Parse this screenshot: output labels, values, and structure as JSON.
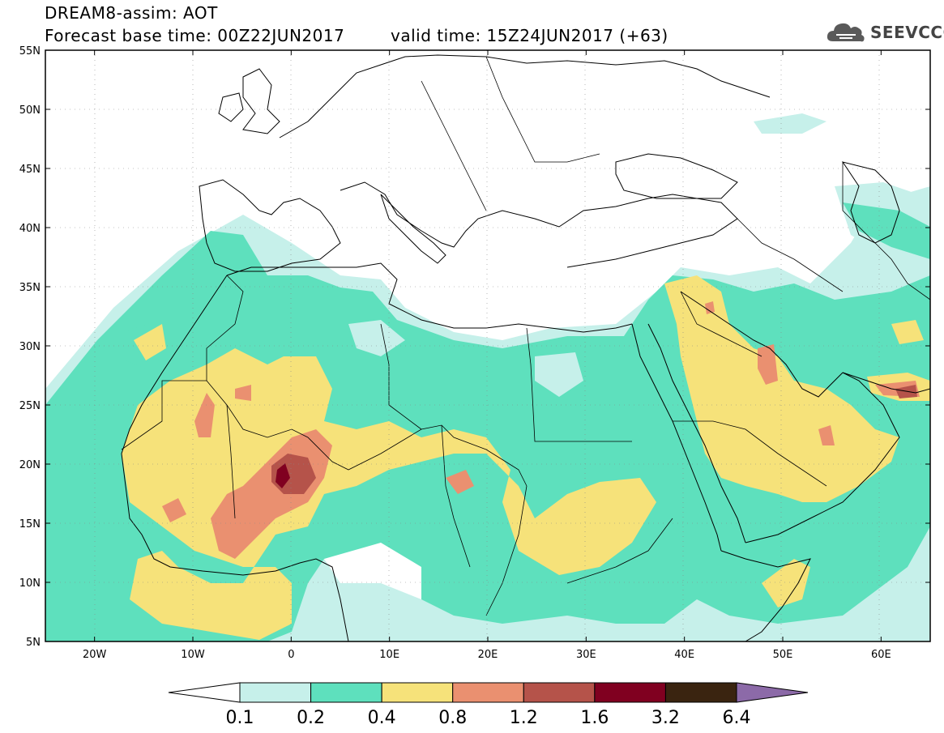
{
  "header": {
    "title_line1": "DREAM8-assim: AOT",
    "title_line2": "Forecast base time: 00Z22JUN2017",
    "valid_time": "valid time: 15Z24JUN2017 (+63)",
    "logo_text": "SEEVCCC"
  },
  "map": {
    "variable": "AOT",
    "lon_range": [
      -25,
      65
    ],
    "lat_range": [
      5,
      55
    ],
    "lat_ticks": [
      "55N",
      "50N",
      "45N",
      "40N",
      "35N",
      "30N",
      "25N",
      "20N",
      "15N",
      "10N",
      "5N"
    ],
    "lon_ticks": [
      "20W",
      "10W",
      "0",
      "10E",
      "20E",
      "30E",
      "40E",
      "50E",
      "60E"
    ]
  },
  "colorbar": {
    "levels": [
      "0.1",
      "0.2",
      "0.4",
      "0.8",
      "1.2",
      "1.6",
      "3.2",
      "6.4"
    ],
    "colors": [
      "#ffffff",
      "#c6f0ea",
      "#5ee0bd",
      "#f6e27a",
      "#ea9070",
      "#b5534a",
      "#800020",
      "#3a2410",
      "#8c6aa8"
    ]
  },
  "colors": {
    "level_01": "#c6f0ea",
    "level_02": "#5ee0bd",
    "level_04": "#f6e27a",
    "level_08": "#ea9070",
    "level_12": "#b5534a",
    "level_16": "#800020",
    "level_32": "#3a2410",
    "level_64": "#8c6aa8"
  },
  "icons": {
    "logo": "cloud-icon"
  }
}
